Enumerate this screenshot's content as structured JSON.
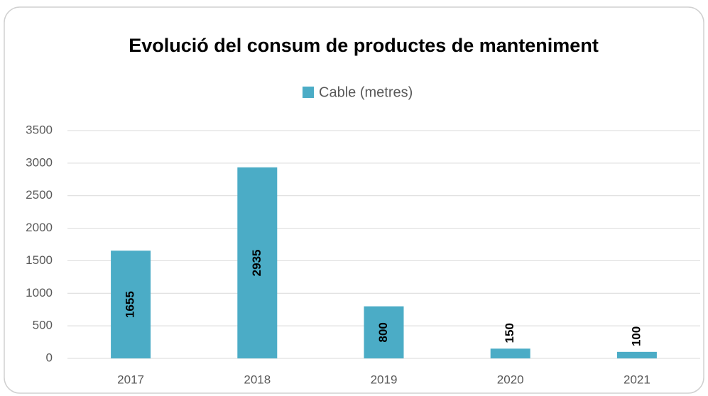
{
  "chart_data": {
    "type": "bar",
    "title": "Evolució del consum de productes de manteniment",
    "categories": [
      "2017",
      "2018",
      "2019",
      "2020",
      "2021"
    ],
    "series": [
      {
        "name": "Cable (metres)",
        "color": "#4bacc6",
        "values": [
          1655,
          2935,
          800,
          150,
          100
        ]
      }
    ],
    "ylim": [
      0,
      3500
    ],
    "yticks": [
      0,
      500,
      1000,
      1500,
      2000,
      2500,
      3000,
      3500
    ],
    "grid": true,
    "legend": "top"
  }
}
